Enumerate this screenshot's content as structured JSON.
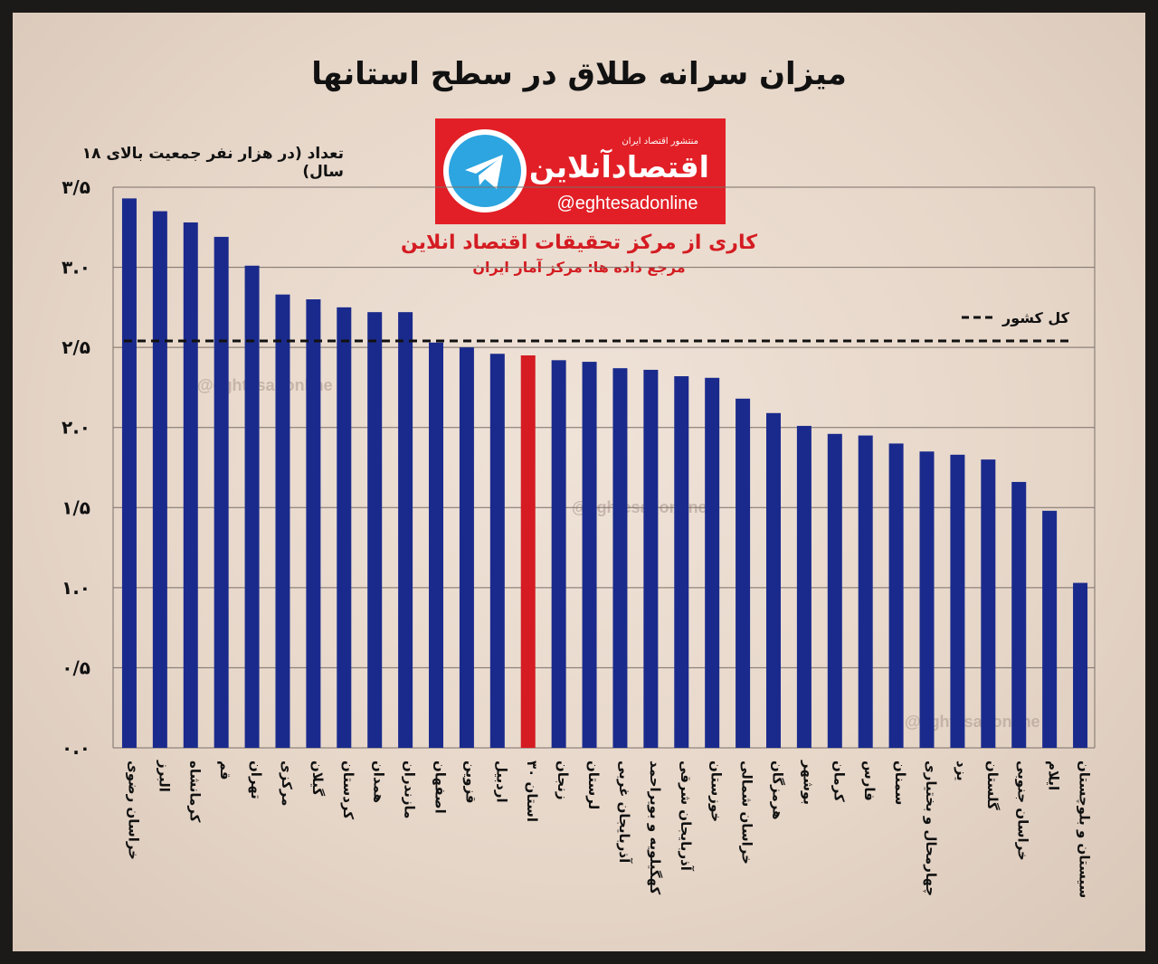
{
  "chart_data": {
    "type": "bar",
    "title": "میزان سرانه طلاق در سطح استانها",
    "ylabel": "تعداد (در هزار نفر جمعیت بالای ۱۸ سال)",
    "ylim": [
      0,
      3.5
    ],
    "y_ticks": [
      0,
      0.5,
      1,
      1.5,
      2,
      2.5,
      3,
      3.5
    ],
    "y_tick_labels": [
      "۰.۰",
      "۰/۵",
      "۱.۰",
      "۱/۵",
      "۲.۰",
      "۲/۵",
      "۳.۰",
      "۳/۵"
    ],
    "categories": [
      "خراسان رضوی",
      "البرز",
      "کرمانشاه",
      "قم",
      "تهران",
      "مرکزی",
      "گیلان",
      "کردستان",
      "همدان",
      "مازندران",
      "اصفهان",
      "قزوین",
      "اردبیل",
      "۳۰ استان",
      "زنجان",
      "لرستان",
      "آذربایجان غربی",
      "کهگیلویه و بویراحمد",
      "آذربایجان شرقی",
      "خوزستان",
      "خراسان شمالی",
      "هرمزگان",
      "بوشهر",
      "کرمان",
      "فارس",
      "سمنان",
      "چهارمحال و بختیاری",
      "یزد",
      "گلستان",
      "خراسان جنوبی",
      "ایلام",
      "سیستان و بلوچستان"
    ],
    "values": [
      3.43,
      3.35,
      3.28,
      3.19,
      3.01,
      2.83,
      2.8,
      2.75,
      2.72,
      2.72,
      2.53,
      2.5,
      2.46,
      2.45,
      2.42,
      2.41,
      2.37,
      2.36,
      2.32,
      2.31,
      2.18,
      2.09,
      2.01,
      1.96,
      1.95,
      1.9,
      1.85,
      1.83,
      1.8,
      1.66,
      1.48,
      1.03
    ],
    "highlight_index": 13,
    "bar_color": "#1a2a8c",
    "highlight_color": "#d41c22",
    "reference_line": {
      "label": "کل کشور",
      "value": 2.54,
      "style": "dashed"
    },
    "grid": true
  },
  "logo": {
    "subtitle": "منتشور اقتصاد ایران",
    "name": "اقتصادآنلاین",
    "handle": "@eghtesadonline",
    "bg_color": "#e21f26",
    "icon": "telegram-icon"
  },
  "credits": {
    "line1": "کاری از مرکز تحقیقات اقتصاد انلاین",
    "line2": "مرجع داده ها: مرکز آمار ایران"
  },
  "watermarks": [
    "@eghtesadonline",
    "@eghtesadonline",
    "@eghtesadonline"
  ]
}
